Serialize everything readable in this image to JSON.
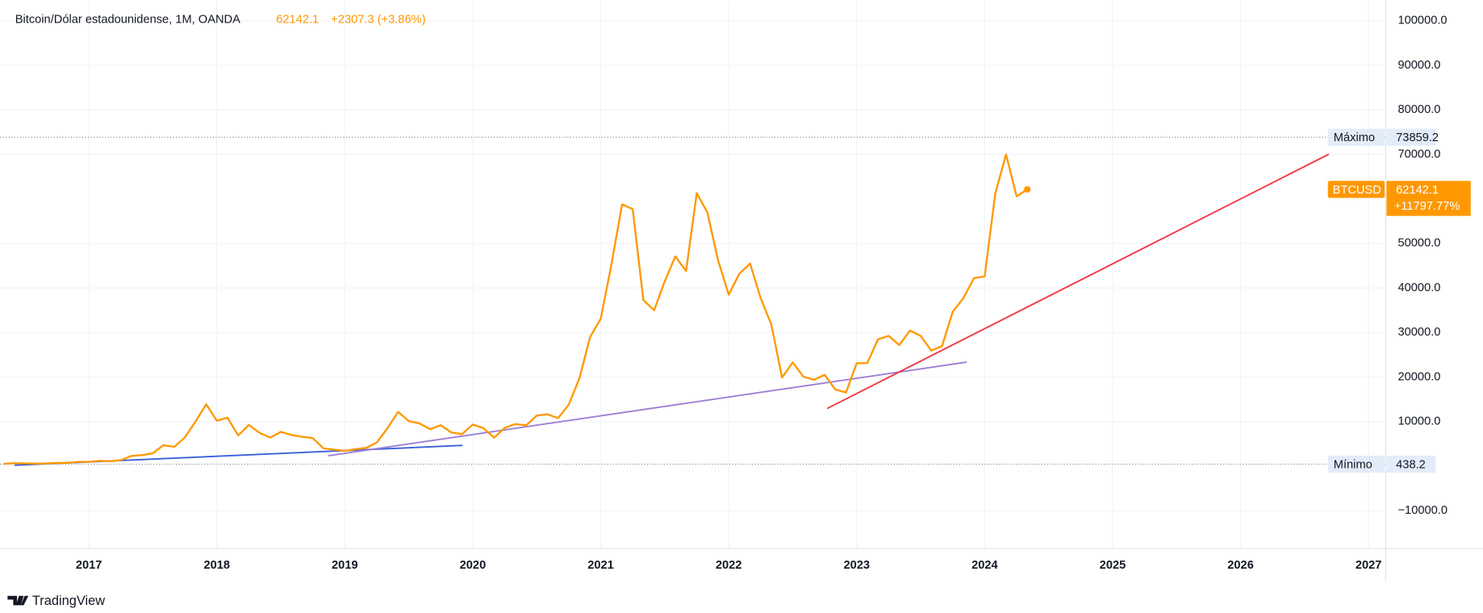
{
  "chart_data": {
    "type": "line",
    "title": "Bitcoin/Dólar estadounidense, 1M, OANDA",
    "change_label": "+2307.3 (+3.86%)",
    "symbol": "BTCUSD",
    "percent_label": "+11797.77%",
    "brand": "TradingView",
    "x": [
      2016.333,
      2016.417,
      2016.5,
      2016.583,
      2016.667,
      2016.75,
      2016.833,
      2016.917,
      2017,
      2017.083,
      2017.167,
      2017.25,
      2017.333,
      2017.417,
      2017.5,
      2017.583,
      2017.667,
      2017.75,
      2017.833,
      2017.917,
      2018,
      2018.083,
      2018.167,
      2018.25,
      2018.333,
      2018.417,
      2018.5,
      2018.583,
      2018.667,
      2018.75,
      2018.833,
      2018.917,
      2019,
      2019.083,
      2019.167,
      2019.25,
      2019.333,
      2019.417,
      2019.5,
      2019.583,
      2019.667,
      2019.75,
      2019.833,
      2019.917,
      2020,
      2020.083,
      2020.167,
      2020.25,
      2020.333,
      2020.417,
      2020.5,
      2020.583,
      2020.667,
      2020.75,
      2020.833,
      2020.917,
      2021,
      2021.083,
      2021.167,
      2021.25,
      2021.333,
      2021.417,
      2021.5,
      2021.583,
      2021.667,
      2021.75,
      2021.833,
      2021.917,
      2022,
      2022.083,
      2022.167,
      2022.25,
      2022.333,
      2022.417,
      2022.5,
      2022.583,
      2022.667,
      2022.75,
      2022.833,
      2022.917,
      2023,
      2023.083,
      2023.167,
      2023.25,
      2023.333,
      2023.417,
      2023.5,
      2023.583,
      2023.667,
      2023.75,
      2023.833,
      2023.917,
      2024,
      2024.083,
      2024.167,
      2024.25,
      2024.333
    ],
    "series": [
      {
        "name": "BTCUSD",
        "color": "#ff9800",
        "values": [
          530,
          670,
          620,
          575,
          610,
          700,
          740,
          960,
          970,
          1190,
          1080,
          1350,
          2300,
          2480,
          2870,
          4700,
          4340,
          6450,
          10000,
          13900,
          10200,
          10900,
          6900,
          9250,
          7500,
          6400,
          7700,
          7000,
          6600,
          6300,
          4000,
          3700,
          3450,
          3800,
          4100,
          5300,
          8500,
          12200,
          10100,
          9600,
          8300,
          9200,
          7550,
          7200,
          9350,
          8550,
          6400,
          8600,
          9450,
          9150,
          11350,
          11650,
          10800,
          13800,
          19700,
          29000,
          33100,
          45200,
          58800,
          57700,
          37300,
          35000,
          41500,
          47100,
          43800,
          61300,
          57000,
          46200,
          38500,
          43200,
          45500,
          37700,
          31800,
          19900,
          23300,
          20100,
          19400,
          20500,
          17200,
          16550,
          23100,
          23150,
          28500,
          29250,
          27200,
          30450,
          29250,
          25950,
          26950,
          34650,
          37700,
          42250,
          42600,
          61200,
          70000,
          60600,
          62142.1
        ]
      }
    ],
    "trendlines": [
      {
        "color": "#3b5fd8",
        "x": [
          2016.42,
          2019.92
        ],
        "values": [
          212,
          4670
        ]
      },
      {
        "color": "#9d7ed4",
        "x": [
          2018.87,
          2023.86
        ],
        "values": [
          2335,
          23355
        ]
      },
      {
        "color": "#f23645",
        "x": [
          2022.77,
          2026.69
        ],
        "values": [
          12950,
          70060
        ]
      }
    ],
    "max": {
      "label": "Máximo",
      "value": 73859.2
    },
    "min": {
      "label": "Mínimo",
      "value": 438.2
    },
    "xlim": [
      2016.35,
      2027.133
    ],
    "xticks": [
      2017,
      2018,
      2019,
      2020,
      2021,
      2022,
      2023,
      2024,
      2025,
      2026,
      2027
    ],
    "ylim": [
      -18500,
      104000
    ],
    "yticks": [
      {
        "value": -10000,
        "label": "−10000.0"
      },
      {
        "value": 10000,
        "label": "10000.0"
      },
      {
        "value": 20000,
        "label": "20000.0"
      },
      {
        "value": 30000,
        "label": "30000.0"
      },
      {
        "value": 40000,
        "label": "40000.0"
      },
      {
        "value": 50000,
        "label": "50000.0"
      },
      {
        "value": 70000,
        "label": "70000.0"
      },
      {
        "value": 80000,
        "label": "80000.0"
      },
      {
        "value": 90000,
        "label": "90000.0"
      },
      {
        "value": 100000,
        "label": "100000.0"
      }
    ],
    "grid": true
  }
}
